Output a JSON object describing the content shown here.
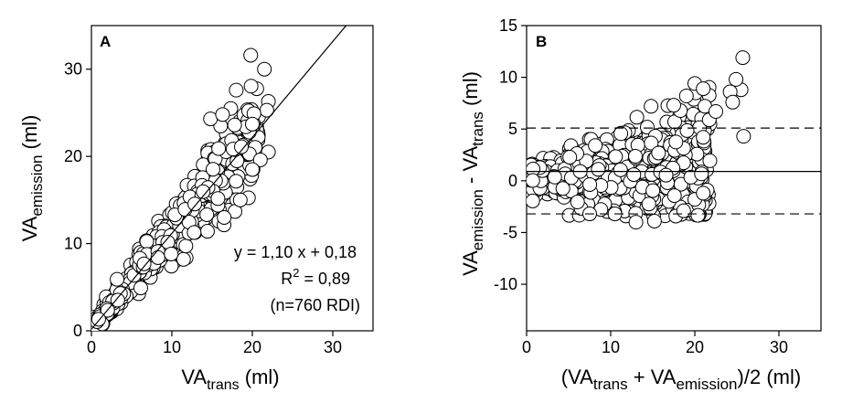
{
  "chart_data": [
    {
      "type": "scatter",
      "panel_label": "A",
      "xlim": [
        0,
        35
      ],
      "ylim": [
        0,
        35
      ],
      "xticks": [
        0,
        10,
        20,
        30
      ],
      "yticks": [
        0,
        10,
        20,
        30
      ],
      "xlabel": {
        "main": "VA",
        "sub": "trans",
        "unit": " (ml)"
      },
      "ylabel": {
        "main": "VA",
        "sub": "emission",
        "unit": " (ml)"
      },
      "regression": {
        "slope": 1.1,
        "intercept": 0.18
      },
      "annotations": {
        "equation": "y = 1,10 x + 0,18",
        "r2_prefix": "R",
        "r2_exp": "2",
        "r2_value": " = 0,89",
        "n_text": "(n=760 RDI)"
      },
      "n_points": 760,
      "outlier_points": [
        [
          19.8,
          31.6
        ],
        [
          21.5,
          30.0
        ],
        [
          18.0,
          27.6
        ],
        [
          22.0,
          26.3
        ],
        [
          21.8,
          25.3
        ],
        [
          20.2,
          24.9
        ],
        [
          14.8,
          24.3
        ],
        [
          16.3,
          24.8
        ],
        [
          17.8,
          23.6
        ],
        [
          20.0,
          23.7
        ],
        [
          22.0,
          20.5
        ],
        [
          21.0,
          19.6
        ],
        [
          20.0,
          18.5
        ],
        [
          16.5,
          13.0
        ],
        [
          18.5,
          15.0
        ]
      ]
    },
    {
      "type": "scatter",
      "panel_label": "B",
      "xlim": [
        0,
        35
      ],
      "ylim": [
        -14.5,
        15
      ],
      "xticks": [
        0,
        10,
        20,
        30
      ],
      "yticks": [
        -10,
        -5,
        0,
        5,
        10,
        15
      ],
      "xlabel": {
        "p1": "(VA",
        "s1": "trans",
        "p2": " + VA",
        "s2": "emission",
        "p3": ")/2  (ml)"
      },
      "ylabel": {
        "p1": "VA",
        "s1": "emission",
        "p2": " - VA",
        "s2": "trans",
        "p3": " (ml)"
      },
      "mean_line": 0.9,
      "limits_of_agreement": [
        -3.2,
        5.1
      ],
      "n_points": 760,
      "outlier_points": [
        [
          25.7,
          11.9
        ],
        [
          25.5,
          8.8
        ],
        [
          24.9,
          9.8
        ],
        [
          24.2,
          8.6
        ],
        [
          24.5,
          7.6
        ],
        [
          20.0,
          9.4
        ],
        [
          21.0,
          8.9
        ],
        [
          21.2,
          7.2
        ],
        [
          19.0,
          8.2
        ],
        [
          22.5,
          6.7
        ],
        [
          25.8,
          4.3
        ],
        [
          14.8,
          7.2
        ],
        [
          17.5,
          7.3
        ],
        [
          15.2,
          -3.9
        ],
        [
          13.0,
          -4.0
        ],
        [
          20.0,
          -1.8
        ],
        [
          21.0,
          -1.2
        ],
        [
          10.5,
          -3.2
        ],
        [
          7.5,
          -3.2
        ]
      ]
    }
  ]
}
